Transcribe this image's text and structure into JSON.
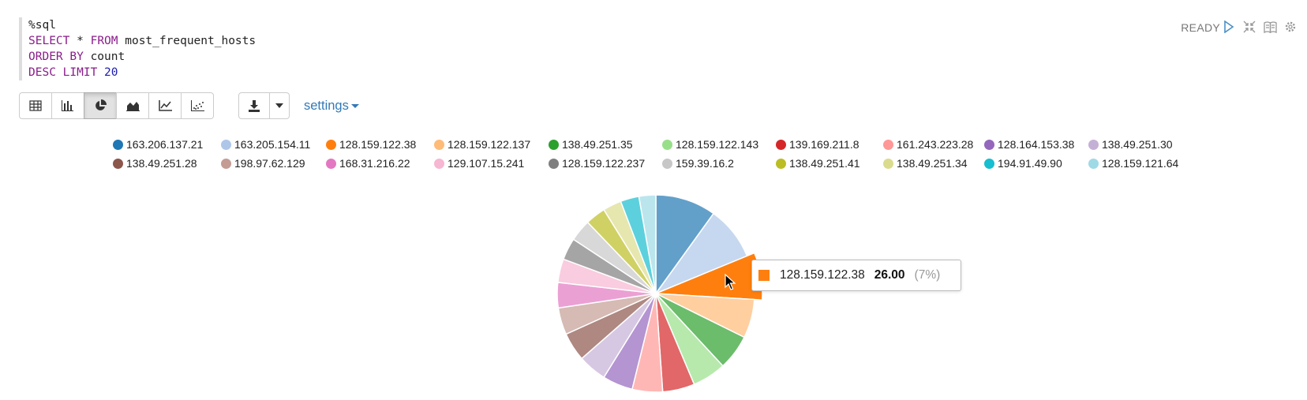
{
  "code": {
    "lines": [
      [
        {
          "t": "%sql",
          "c": "plain"
        }
      ],
      [
        {
          "t": "SELECT",
          "c": "kw"
        },
        {
          "t": " * ",
          "c": "plain"
        },
        {
          "t": "FROM",
          "c": "kw"
        },
        {
          "t": " most_frequent_hosts",
          "c": "plain"
        }
      ],
      [
        {
          "t": "ORDER BY",
          "c": "kw"
        },
        {
          "t": " count",
          "c": "plain"
        }
      ],
      [
        {
          "t": "DESC LIMIT",
          "c": "kw"
        },
        {
          "t": " 20",
          "c": "num"
        }
      ]
    ]
  },
  "status": "READY",
  "top_icons": [
    "run-icon",
    "collapse-icon",
    "book-icon",
    "gear-icon"
  ],
  "toolbar": {
    "chart_types": [
      {
        "name": "table-icon",
        "active": false
      },
      {
        "name": "bar-chart-icon",
        "active": false
      },
      {
        "name": "pie-chart-icon",
        "active": true
      },
      {
        "name": "area-chart-icon",
        "active": false
      },
      {
        "name": "line-chart-icon",
        "active": false
      },
      {
        "name": "scatter-chart-icon",
        "active": false
      }
    ],
    "download_icon": "download-icon",
    "settings_label": "settings"
  },
  "chart_data": {
    "type": "pie",
    "categories": [
      "163.206.137.21",
      "163.205.154.11",
      "128.159.122.38",
      "128.159.122.137",
      "138.49.251.35",
      "128.159.122.143",
      "139.169.211.8",
      "161.243.223.28",
      "128.164.153.38",
      "138.49.251.30",
      "138.49.251.28",
      "198.97.62.129",
      "168.31.216.22",
      "129.107.15.241",
      "128.159.122.237",
      "159.39.16.2",
      "138.49.251.41",
      "138.49.251.34",
      "194.91.49.90",
      "128.159.121.64"
    ],
    "values": [
      36,
      32,
      26,
      23,
      21,
      20,
      19,
      18,
      18,
      17,
      17,
      16,
      15,
      14,
      13,
      13,
      12,
      11,
      11,
      10
    ],
    "colors": [
      "#1f77b4",
      "#aec7e8",
      "#ff7f0e",
      "#ffbb78",
      "#2ca02c",
      "#98df8a",
      "#d62728",
      "#ff9896",
      "#9467bd",
      "#c5b0d5",
      "#8c564b",
      "#c49c94",
      "#e377c2",
      "#f7b6d2",
      "#7f7f7f",
      "#c7c7c7",
      "#bcbd22",
      "#dbdb8d",
      "#17becf",
      "#9edae5"
    ],
    "highlighted_index": 2,
    "legend_position": "top",
    "tooltip": {
      "label": "128.159.122.38",
      "value": "26.00",
      "percent": "(7%)"
    }
  }
}
